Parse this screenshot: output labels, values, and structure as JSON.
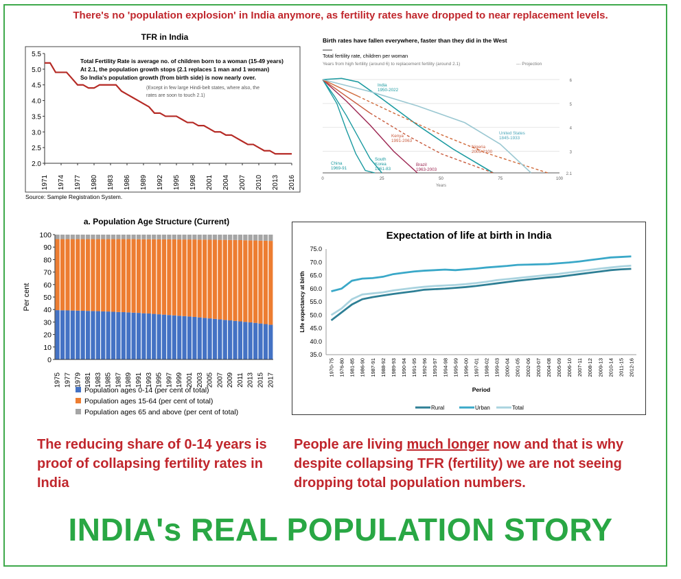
{
  "header": "There's no 'population explosion' in India anymore, as fertility rates have dropped to near replacement levels.",
  "footer_title": "INDIA's REAL POPULATION STORY",
  "caption_left": "The reducing share of 0-14 years is proof of collapsing fertility rates in India",
  "caption_right": {
    "before": "People are living ",
    "underlined": "much longer",
    "after": " now and that is why despite collapsing TFR (fertility) we are not seeing dropping total population numbers."
  },
  "colors": {
    "header_red": "#c0262c",
    "title_green": "#29a744",
    "frame_green": "#3da84a",
    "tfr_line": "#b52a25",
    "age_0_14": "#4472c4",
    "age_15_64": "#ed7d31",
    "age_65": "#a5a5a5",
    "rural": "#2e7f95",
    "urban": "#3aa8c8",
    "total": "#a9d3df"
  },
  "chart_data": [
    {
      "type": "line",
      "title": "TFR in India",
      "x": [
        1971,
        1972,
        1973,
        1974,
        1975,
        1976,
        1977,
        1978,
        1979,
        1980,
        1981,
        1982,
        1983,
        1984,
        1985,
        1986,
        1987,
        1988,
        1989,
        1990,
        1991,
        1992,
        1993,
        1994,
        1995,
        1996,
        1997,
        1998,
        1999,
        2000,
        2001,
        2002,
        2003,
        2004,
        2005,
        2006,
        2007,
        2008,
        2009,
        2010,
        2011,
        2012,
        2013,
        2014,
        2015,
        2016
      ],
      "xticks": [
        "1971",
        "1974",
        "1977",
        "1980",
        "1983",
        "1986",
        "1989",
        "1992",
        "1995",
        "1998",
        "2001",
        "2004",
        "2007",
        "2010",
        "2013",
        "2016"
      ],
      "series": [
        {
          "values": [
            5.2,
            5.2,
            4.9,
            4.9,
            4.9,
            4.7,
            4.5,
            4.5,
            4.4,
            4.4,
            4.5,
            4.5,
            4.5,
            4.5,
            4.3,
            4.2,
            4.1,
            4.0,
            3.9,
            3.8,
            3.6,
            3.6,
            3.5,
            3.5,
            3.5,
            3.4,
            3.3,
            3.3,
            3.2,
            3.2,
            3.1,
            3.0,
            3.0,
            2.9,
            2.9,
            2.8,
            2.7,
            2.6,
            2.6,
            2.5,
            2.4,
            2.4,
            2.3,
            2.3,
            2.3,
            2.3
          ]
        }
      ],
      "ylim": [
        2.0,
        5.5
      ],
      "yticks": [
        "2.0",
        "2.5",
        "3.0",
        "3.5",
        "4.0",
        "4.5",
        "5.0",
        "5.5"
      ],
      "note_bold": [
        "Total Fertility Rate is average no. of children born to a woman (15-49 years)",
        "At 2.1, the population growth stops (2.1 replaces 1 man and 1 woman)",
        "So India's population growth (from birth side) is now nearly over."
      ],
      "note_small": [
        "(Except in few large Hindi-belt states, where also, the",
        "rates are soon to touch 2.1)"
      ],
      "source": "Source: Sample Registration System."
    },
    {
      "type": "line",
      "title": "Birth rates have fallen everywhere, faster than they did in the West",
      "subtitle": "Total fertility rate, children per woman",
      "subtitle2": "Years from high fertility (around 6) to replacement fertility (around 2.1)",
      "legend_projection": "--- Projection",
      "xlabel": "Years",
      "xlim": [
        0,
        100
      ],
      "xticks": [
        "0",
        "25",
        "50",
        "75",
        "100"
      ],
      "ylim": [
        2.1,
        6
      ],
      "yticks": [
        "6",
        "5",
        "4",
        "3",
        "2.1"
      ],
      "series": [
        {
          "name": "India 1950-2022",
          "x": [
            0,
            8,
            15,
            25,
            40,
            55,
            72
          ],
          "y": [
            6,
            6.05,
            5.9,
            5.2,
            4.1,
            3.1,
            2.1
          ]
        },
        {
          "name": "China 1969-91",
          "x": [
            0,
            6,
            10,
            14,
            18,
            22
          ],
          "y": [
            6,
            5,
            3.9,
            2.9,
            2.2,
            2.1
          ]
        },
        {
          "name": "South Korea 1961-83",
          "x": [
            0,
            5,
            10,
            15,
            20,
            25
          ],
          "y": [
            6,
            5.3,
            4.5,
            3.6,
            2.7,
            2.1
          ]
        },
        {
          "name": "Brazil 1963-2003",
          "x": [
            0,
            10,
            20,
            30,
            40
          ],
          "y": [
            6,
            5.1,
            4.1,
            3.0,
            2.1
          ]
        },
        {
          "name": "Kenya 1991-2063",
          "x": [
            0,
            10,
            20,
            35,
            50,
            72
          ],
          "y": [
            6,
            5.3,
            4.6,
            3.7,
            2.9,
            2.1
          ],
          "projection_from": 30
        },
        {
          "name": "Nigeria 2005-2100",
          "x": [
            0,
            15,
            30,
            50,
            70,
            95
          ],
          "y": [
            6,
            5.3,
            4.6,
            3.7,
            2.9,
            2.1
          ],
          "projection_from": 17
        },
        {
          "name": "United States 1845-1933",
          "x": [
            0,
            20,
            40,
            60,
            75,
            88
          ],
          "y": [
            6,
            5.5,
            4.9,
            4.2,
            3.3,
            2.1
          ]
        }
      ]
    },
    {
      "type": "bar",
      "stacked": true,
      "title": "a. Population Age Structure (Current)",
      "ylabel": "Per cent",
      "ylim": [
        0,
        100
      ],
      "yticks": [
        "0",
        "10",
        "20",
        "30",
        "40",
        "50",
        "60",
        "70",
        "80",
        "90",
        "100"
      ],
      "categories": [
        "1975",
        "1976",
        "1977",
        "1978",
        "1979",
        "1980",
        "1981",
        "1982",
        "1983",
        "1984",
        "1985",
        "1986",
        "1987",
        "1988",
        "1989",
        "1990",
        "1991",
        "1992",
        "1993",
        "1994",
        "1995",
        "1996",
        "1997",
        "1998",
        "1999",
        "2000",
        "2001",
        "2002",
        "2003",
        "2004",
        "2005",
        "2006",
        "2007",
        "2008",
        "2009",
        "2010",
        "2011",
        "2012",
        "2013",
        "2014",
        "2015",
        "2016",
        "2017"
      ],
      "xticks": [
        "1975",
        "1977",
        "1979",
        "1981",
        "1983",
        "1985",
        "1987",
        "1989",
        "1991",
        "1993",
        "1995",
        "1997",
        "1999",
        "2001",
        "2003",
        "2005",
        "2007",
        "2009",
        "2011",
        "2013",
        "2015",
        "2017"
      ],
      "series": [
        {
          "name": "Population ages 0-14 (per cent of total)",
          "values": [
            39.5,
            39.4,
            39.3,
            39.2,
            39.1,
            39.0,
            38.9,
            38.8,
            38.7,
            38.5,
            38.4,
            38.2,
            38.0,
            37.9,
            37.7,
            37.5,
            37.3,
            37.0,
            36.8,
            36.5,
            36.2,
            35.9,
            35.6,
            35.3,
            35.0,
            34.7,
            34.4,
            34.1,
            33.7,
            33.3,
            32.9,
            32.5,
            32.1,
            31.7,
            31.3,
            30.9,
            30.5,
            30.1,
            29.7,
            29.3,
            28.8,
            28.3,
            27.8
          ]
        },
        {
          "name": "Population ages 15-64 (per cent of total)",
          "values": [
            56.9,
            57.0,
            57.1,
            57.2,
            57.3,
            57.4,
            57.5,
            57.6,
            57.7,
            57.9,
            58.0,
            58.2,
            58.4,
            58.5,
            58.7,
            58.9,
            59.0,
            59.3,
            59.5,
            59.8,
            60.0,
            60.3,
            60.6,
            60.9,
            61.1,
            61.4,
            61.7,
            62.0,
            62.3,
            62.7,
            63.0,
            63.4,
            63.7,
            64.1,
            64.4,
            64.8,
            65.1,
            65.4,
            65.7,
            66.0,
            66.4,
            66.8,
            67.2
          ]
        },
        {
          "name": "Population ages 65 and above (per cent of total)",
          "values": [
            3.6,
            3.6,
            3.6,
            3.6,
            3.6,
            3.6,
            3.6,
            3.6,
            3.6,
            3.6,
            3.6,
            3.6,
            3.6,
            3.6,
            3.6,
            3.6,
            3.7,
            3.7,
            3.7,
            3.7,
            3.8,
            3.8,
            3.8,
            3.8,
            3.9,
            3.9,
            3.9,
            3.9,
            4.0,
            4.0,
            4.1,
            4.1,
            4.2,
            4.2,
            4.3,
            4.3,
            4.4,
            4.5,
            4.6,
            4.7,
            4.8,
            4.9,
            5.0
          ]
        }
      ]
    },
    {
      "type": "line",
      "title": "Expectation of life at birth in India",
      "ylabel": "Life expectancy at birth",
      "xlabel": "Period",
      "ylim": [
        35,
        75
      ],
      "yticks": [
        "35.0",
        "40.0",
        "45.0",
        "50.0",
        "55.0",
        "60.0",
        "65.0",
        "70.0",
        "75.0"
      ],
      "categories": [
        "1970-75",
        "1976-80",
        "1981-85",
        "1986-90",
        "1987-91",
        "1988-92",
        "1989-93",
        "1990-94",
        "1991-95",
        "1992-96",
        "1993-97",
        "1994-98",
        "1995-99",
        "1996-00",
        "1997-01",
        "1998-02",
        "1999-03",
        "2000-04",
        "2001-05",
        "2002-06",
        "2003-07",
        "2004-08",
        "2005-09",
        "2006-10",
        "2007-11",
        "2008-12",
        "2009-13",
        "2010-14",
        "2011-15",
        "2012-16"
      ],
      "series": [
        {
          "name": "Rural",
          "values": [
            48.0,
            51.0,
            54.0,
            56.0,
            56.8,
            57.4,
            58.0,
            58.5,
            59.0,
            59.6,
            59.8,
            60.0,
            60.3,
            60.6,
            61.0,
            61.5,
            62.0,
            62.5,
            63.0,
            63.4,
            63.8,
            64.2,
            64.5,
            65.0,
            65.5,
            66.0,
            66.5,
            67.0,
            67.3,
            67.5
          ]
        },
        {
          "name": "Urban",
          "values": [
            59.0,
            60.0,
            63.0,
            63.8,
            64.0,
            64.5,
            65.5,
            66.0,
            66.5,
            66.8,
            67.0,
            67.2,
            67.0,
            67.3,
            67.6,
            68.0,
            68.3,
            68.6,
            69.0,
            69.1,
            69.2,
            69.3,
            69.6,
            69.9,
            70.3,
            70.8,
            71.3,
            71.8,
            72.0,
            72.2
          ]
        },
        {
          "name": "Total",
          "values": [
            50.0,
            52.5,
            56.0,
            57.8,
            58.2,
            58.6,
            59.3,
            59.8,
            60.3,
            60.7,
            61.0,
            61.2,
            61.4,
            61.7,
            62.1,
            62.6,
            63.2,
            63.6,
            64.0,
            64.4,
            64.8,
            65.2,
            65.6,
            66.1,
            66.6,
            67.1,
            67.6,
            68.0,
            68.4,
            68.7
          ]
        }
      ]
    }
  ]
}
